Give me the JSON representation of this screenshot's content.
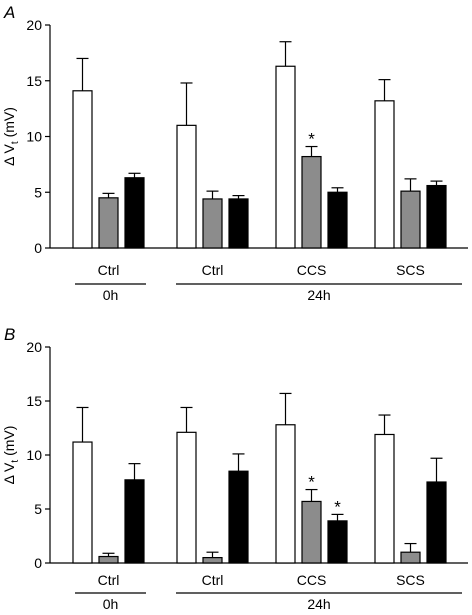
{
  "colors": {
    "bar_1": "#ffffff",
    "bar_2": "#8c8c8c",
    "bar_3": "#000000",
    "stroke": "#000000"
  },
  "chart_data": [
    {
      "type": "bar",
      "panel_label": "A",
      "ylabel": "Δ V",
      "ylabel_sub": "t",
      "ylabel_unit": " (mV)",
      "ylim": [
        0,
        20
      ],
      "yticks": [
        0,
        5,
        10,
        15,
        20
      ],
      "grid": false,
      "categories": [
        "Ctrl",
        "Ctrl",
        "CCS",
        "SCS"
      ],
      "groups": [
        "0h",
        "24h"
      ],
      "series": [
        {
          "values": [
            14.1,
            11.0,
            16.3,
            13.2
          ],
          "errors": [
            2.9,
            3.8,
            2.2,
            1.9
          ]
        },
        {
          "values": [
            4.5,
            4.4,
            8.2,
            5.1
          ],
          "errors": [
            0.4,
            0.7,
            0.9,
            1.1
          ]
        },
        {
          "values": [
            6.3,
            4.4,
            5.0,
            5.6
          ],
          "errors": [
            0.4,
            0.3,
            0.4,
            0.4
          ]
        }
      ],
      "annotations": [
        {
          "text": "*",
          "category_index": 2,
          "series_index": 1
        }
      ]
    },
    {
      "type": "bar",
      "panel_label": "B",
      "ylabel": "Δ V",
      "ylabel_sub": "t",
      "ylabel_unit": " (mV)",
      "ylim": [
        0,
        20
      ],
      "yticks": [
        0,
        5,
        10,
        15,
        20
      ],
      "grid": false,
      "categories": [
        "Ctrl",
        "Ctrl",
        "CCS",
        "SCS"
      ],
      "groups": [
        "0h",
        "24h"
      ],
      "series": [
        {
          "values": [
            11.2,
            12.1,
            12.8,
            11.9
          ],
          "errors": [
            3.2,
            2.3,
            2.9,
            1.8
          ]
        },
        {
          "values": [
            0.6,
            0.5,
            5.7,
            1.0
          ],
          "errors": [
            0.3,
            0.5,
            1.1,
            0.8
          ]
        },
        {
          "values": [
            7.7,
            8.5,
            3.9,
            7.5
          ],
          "errors": [
            1.5,
            1.6,
            0.6,
            2.2
          ]
        }
      ],
      "annotations": [
        {
          "text": "*",
          "category_index": 2,
          "series_index": 1
        },
        {
          "text": "*",
          "category_index": 2,
          "series_index": 2
        }
      ]
    }
  ]
}
